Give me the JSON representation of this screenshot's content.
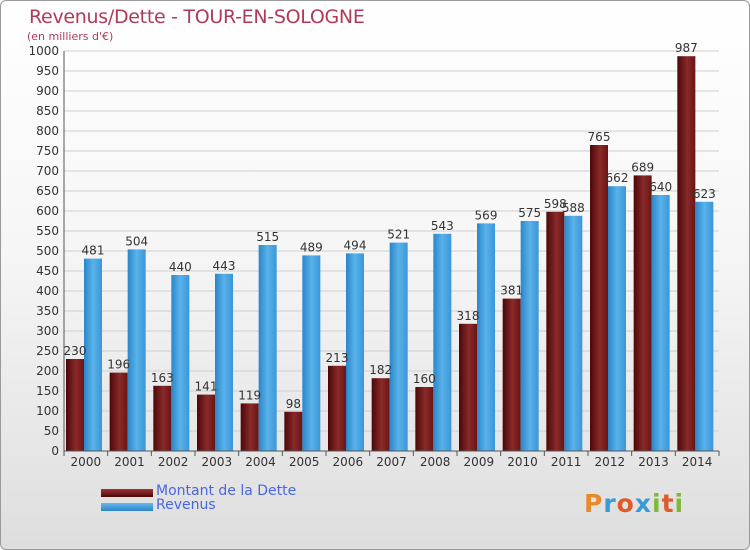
{
  "header": {
    "title": "Revenus/Dette - TOUR-EN-SOLOGNE",
    "subtitle": "(en milliers d'€)"
  },
  "legend": {
    "debt_label": "Montant de la Dette",
    "revenue_label": "Revenus"
  },
  "logo": {
    "text": "Proxiti"
  },
  "colors": {
    "debt_top": "#a33434",
    "debt_bottom": "#4a0808",
    "revenue_top": "#66b8ec",
    "revenue_bottom": "#2a86c8",
    "title": "#b03a5a",
    "legend_text": "#4a66dd"
  },
  "chart_data": {
    "type": "bar",
    "title": "Revenus/Dette - TOUR-EN-SOLOGNE",
    "subtitle": "(en milliers d'€)",
    "xlabel": "",
    "ylabel": "",
    "ylim": [
      0,
      1000
    ],
    "ytick_step": 50,
    "grid": true,
    "legend_position": "bottom-left",
    "categories": [
      "2000",
      "2001",
      "2002",
      "2003",
      "2004",
      "2005",
      "2006",
      "2007",
      "2008",
      "2009",
      "2010",
      "2011",
      "2012",
      "2013",
      "2014"
    ],
    "series": [
      {
        "name": "Montant de la Dette",
        "values": [
          230,
          196,
          163,
          141,
          119,
          98,
          213,
          182,
          160,
          318,
          381,
          598,
          765,
          689,
          987
        ]
      },
      {
        "name": "Revenus",
        "values": [
          481,
          504,
          440,
          443,
          515,
          489,
          494,
          521,
          543,
          569,
          575,
          588,
          662,
          640,
          623
        ]
      }
    ]
  }
}
